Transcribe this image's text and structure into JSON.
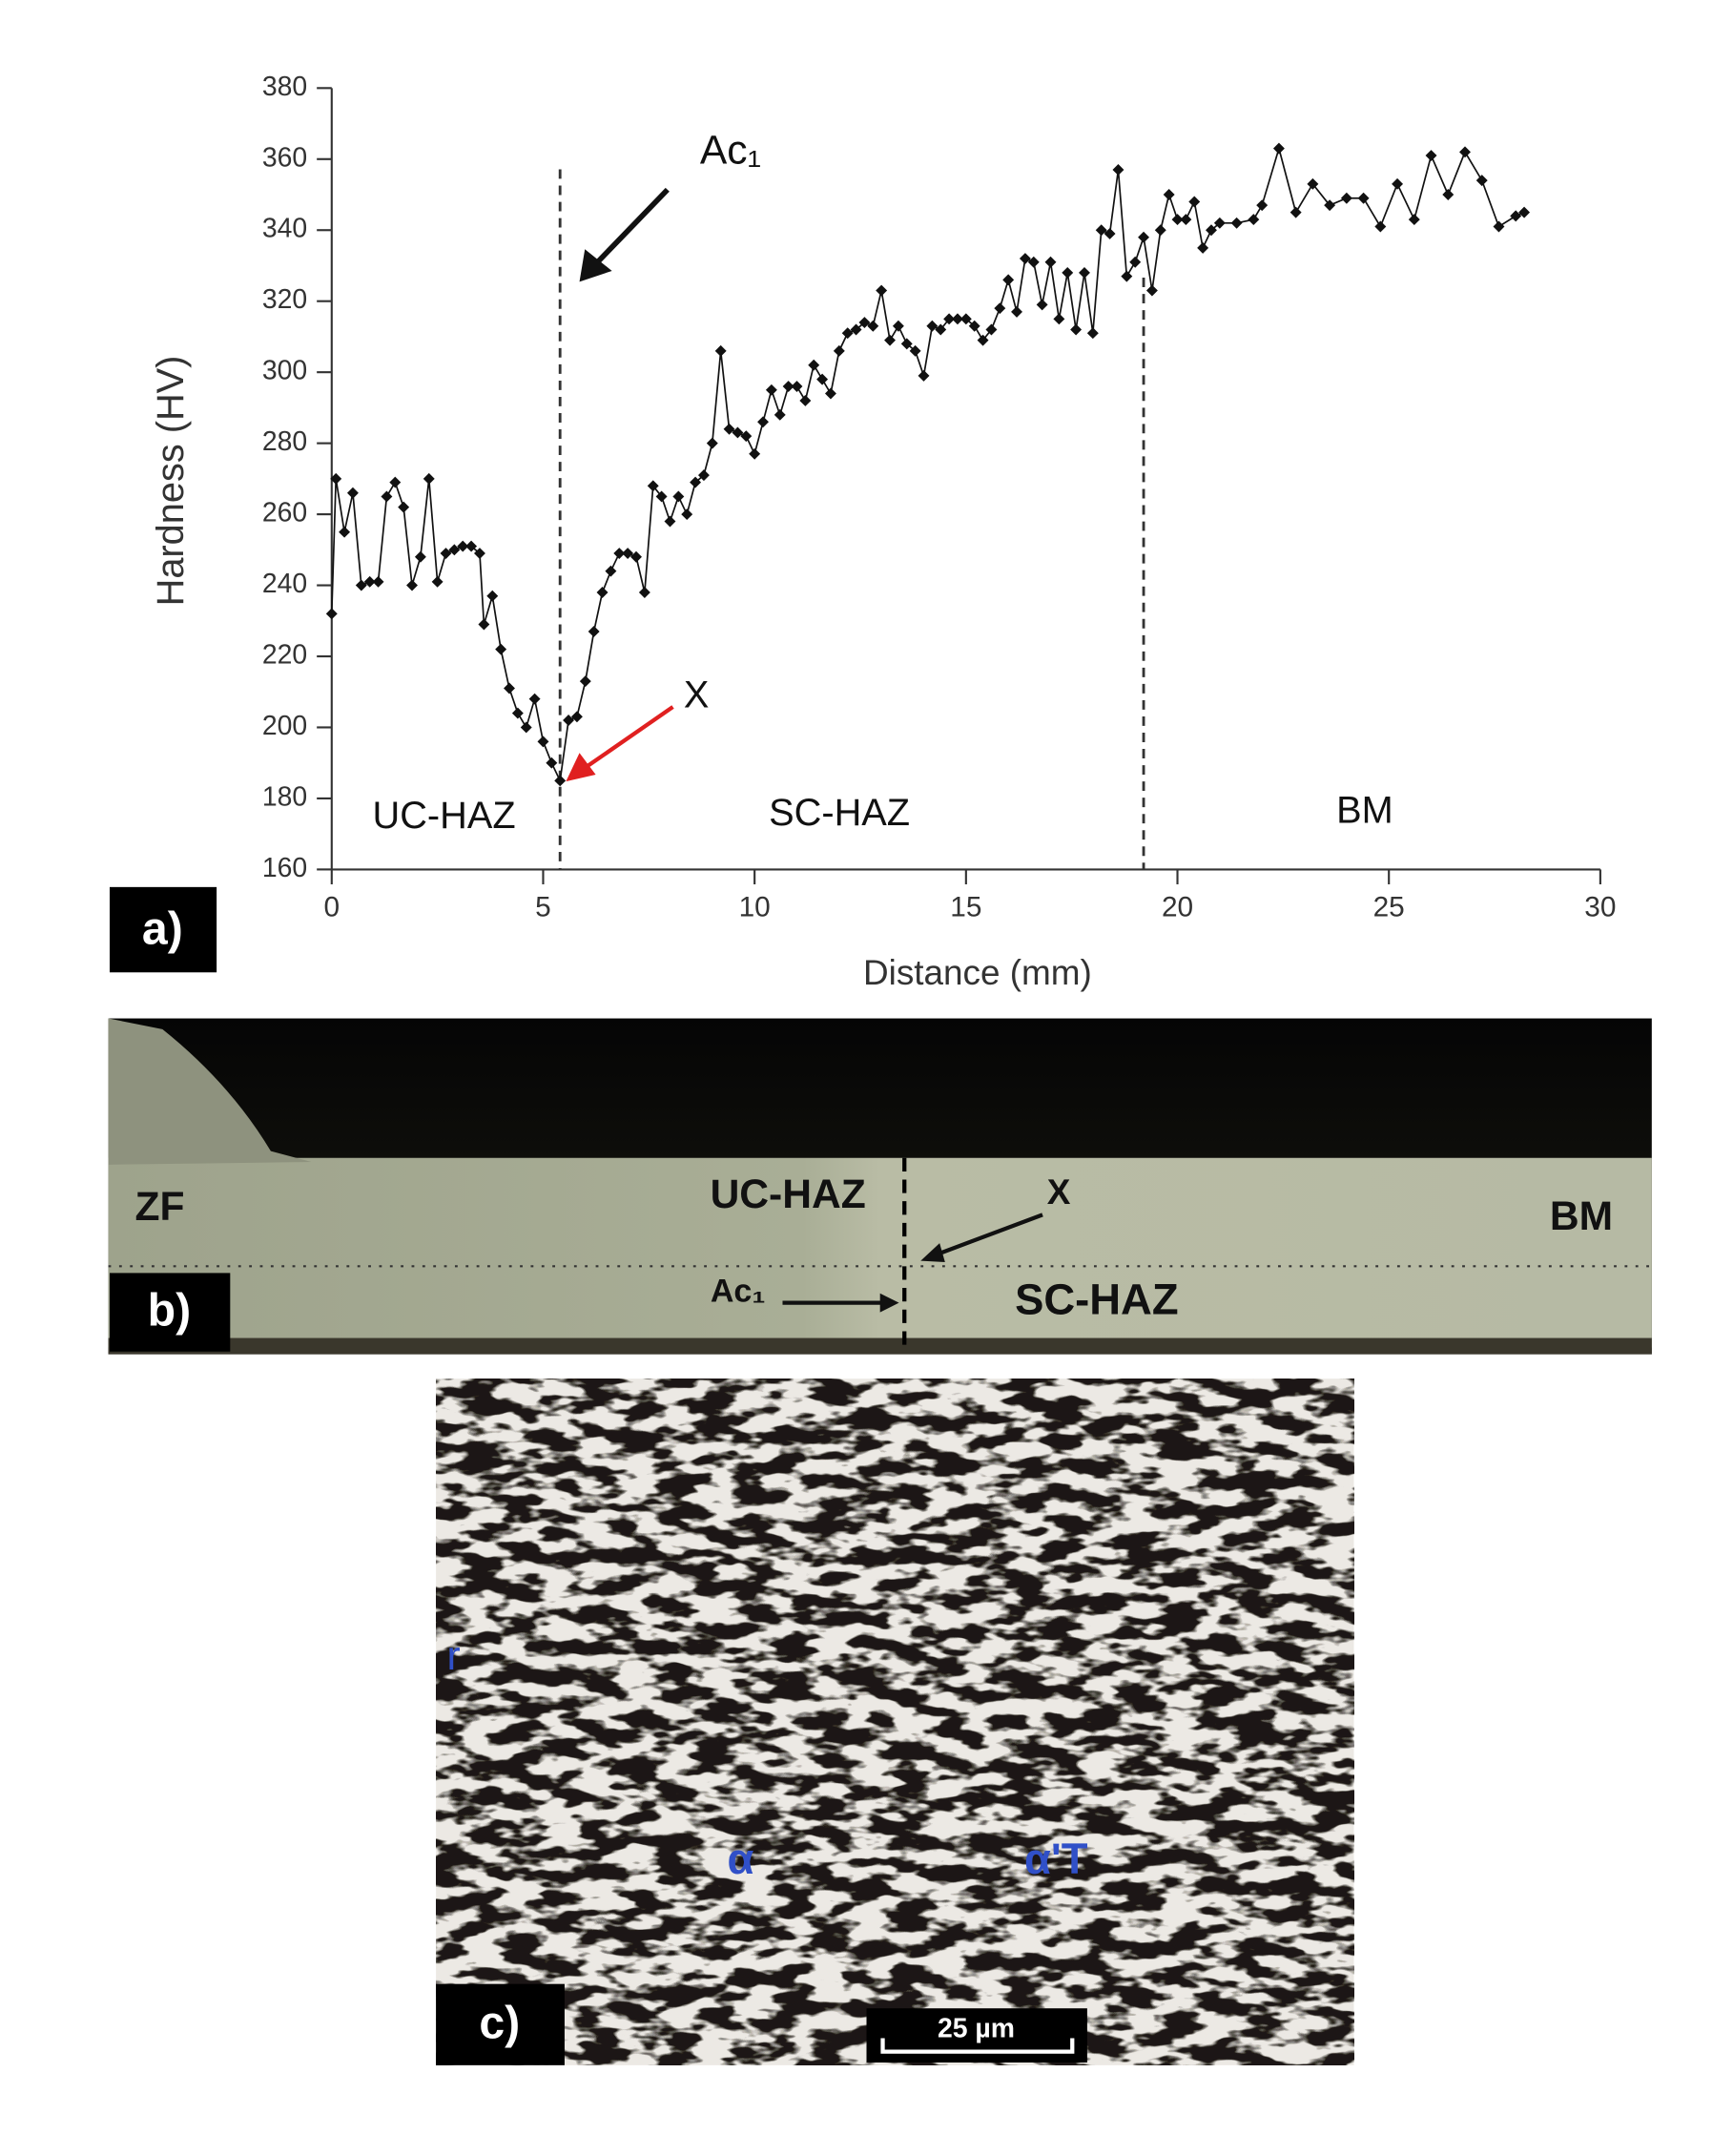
{
  "chart_data": {
    "type": "line",
    "xlabel": "Distance (mm)",
    "ylabel": "Hardness (HV)",
    "color": "#111111",
    "x": [
      0,
      0.1,
      0.3,
      0.5,
      0.7,
      0.9,
      1.1,
      1.3,
      1.5,
      1.7,
      1.9,
      2.1,
      2.3,
      2.5,
      2.7,
      2.9,
      3.1,
      3.3,
      3.5,
      3.6,
      3.8,
      4.0,
      4.2,
      4.4,
      4.6,
      4.8,
      5.0,
      5.2,
      5.4,
      5.6,
      5.8,
      6.0,
      6.2,
      6.4,
      6.6,
      6.8,
      7.0,
      7.2,
      7.4,
      7.6,
      7.8,
      8.0,
      8.2,
      8.4,
      8.6,
      8.8,
      9.0,
      9.2,
      9.4,
      9.6,
      9.8,
      10.0,
      10.2,
      10.4,
      10.6,
      10.8,
      11.0,
      11.2,
      11.4,
      11.6,
      11.8,
      12.0,
      12.2,
      12.4,
      12.6,
      12.8,
      13.0,
      13.2,
      13.4,
      13.6,
      13.8,
      14.0,
      14.2,
      14.4,
      14.6,
      14.8,
      15.0,
      15.2,
      15.4,
      15.6,
      15.8,
      16.0,
      16.2,
      16.4,
      16.6,
      16.8,
      17.0,
      17.2,
      17.4,
      17.6,
      17.8,
      18.0,
      18.2,
      18.4,
      18.6,
      18.8,
      19.0,
      19.2,
      19.4,
      19.6,
      19.8,
      20.0,
      20.2,
      20.4,
      20.6,
      20.8,
      21.0,
      21.4,
      21.8,
      22.0,
      22.4,
      22.8,
      23.2,
      23.6,
      24.0,
      24.4,
      24.8,
      25.2,
      25.6,
      26.0,
      26.4,
      26.8,
      27.2,
      27.6,
      28.0,
      28.2
    ],
    "values": [
      232,
      270,
      255,
      266,
      240,
      241,
      241,
      265,
      269,
      262,
      240,
      248,
      270,
      241,
      249,
      250,
      251,
      251,
      249,
      229,
      237,
      222,
      211,
      204,
      200,
      208,
      196,
      190,
      185,
      202,
      203,
      213,
      227,
      238,
      244,
      249,
      249,
      248,
      238,
      268,
      265,
      258,
      265,
      260,
      269,
      271,
      280,
      306,
      284,
      283,
      282,
      277,
      286,
      295,
      288,
      296,
      296,
      292,
      302,
      298,
      294,
      306,
      311,
      312,
      314,
      313,
      323,
      309,
      313,
      308,
      306,
      299,
      313,
      312,
      315,
      315,
      315,
      313,
      309,
      312,
      318,
      326,
      317,
      332,
      331,
      319,
      331,
      315,
      328,
      312,
      328,
      311,
      340,
      339,
      357,
      327,
      331,
      338,
      323,
      340,
      350,
      343,
      343,
      348,
      335,
      340,
      342,
      342,
      343,
      347,
      363,
      345,
      353,
      347,
      349,
      349,
      341,
      353,
      343,
      361,
      350,
      362,
      354,
      341,
      344,
      345
    ],
    "xlim": [
      0,
      30
    ],
    "xticks": [
      0,
      5,
      10,
      15,
      20,
      25,
      30
    ],
    "ylim": [
      160,
      380
    ],
    "yticks": [
      160,
      180,
      200,
      220,
      240,
      260,
      280,
      300,
      320,
      340,
      360,
      380
    ],
    "vlines": [
      5.4,
      19.2
    ],
    "annotations": {
      "ac1": "Ac₁",
      "x": "X",
      "uc_haz": "UC-HAZ",
      "sc_haz": "SC-HAZ",
      "bm": "BM"
    },
    "panel_label": "a)"
  },
  "panel_b": {
    "label": "b)",
    "zf": "ZF",
    "uc_haz": "UC-HAZ",
    "x": "X",
    "bm": "BM",
    "ac1": "Ac₁",
    "sc_haz": "SC-HAZ"
  },
  "panel_c": {
    "label": "c)",
    "r": "r",
    "alpha": "α",
    "alpha_t": "α'T",
    "scale": "25 µm"
  }
}
